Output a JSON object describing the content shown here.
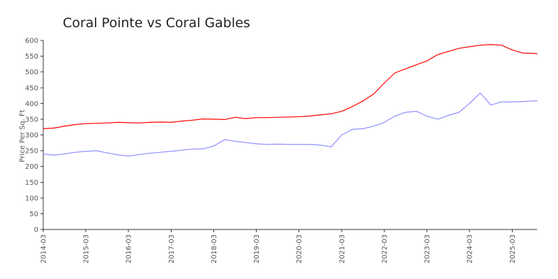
{
  "chart_data": {
    "type": "line",
    "title": "Coral Pointe vs Coral Gables",
    "xlabel": "",
    "ylabel": "Price Per Sq. Ft",
    "ylim": [
      0,
      600
    ],
    "yticks": [
      0,
      50,
      100,
      150,
      200,
      250,
      300,
      350,
      400,
      450,
      500,
      550,
      600
    ],
    "xlim": [
      "2014-03",
      "2025-10"
    ],
    "xticks": [
      "2014-03",
      "2015-03",
      "2016-03",
      "2017-03",
      "2018-03",
      "2019-03",
      "2020-03",
      "2021-03",
      "2022-03",
      "2023-03",
      "2024-03",
      "2025-03"
    ],
    "grid": false,
    "legend": "none",
    "series": [
      {
        "color": "#ff0000",
        "x": [
          "2014-03",
          "2014-06",
          "2014-09",
          "2014-12",
          "2015-03",
          "2015-06",
          "2015-09",
          "2015-12",
          "2016-03",
          "2016-06",
          "2016-09",
          "2016-12",
          "2017-03",
          "2017-06",
          "2017-09",
          "2017-12",
          "2018-03",
          "2018-06",
          "2018-09",
          "2018-12",
          "2019-03",
          "2019-06",
          "2019-09",
          "2019-12",
          "2020-03",
          "2020-06",
          "2020-09",
          "2020-12",
          "2021-03",
          "2021-06",
          "2021-09",
          "2021-12",
          "2022-03",
          "2022-06",
          "2022-09",
          "2022-12",
          "2023-03",
          "2023-06",
          "2023-09",
          "2023-12",
          "2024-03",
          "2024-06",
          "2024-09",
          "2024-12",
          "2025-03",
          "2025-06",
          "2025-09",
          "2025-10"
        ],
        "values": [
          320,
          322,
          328,
          333,
          336,
          337,
          338,
          340,
          339,
          338,
          340,
          341,
          340,
          344,
          347,
          351,
          350,
          349,
          356,
          352,
          355,
          355,
          356,
          357,
          358,
          360,
          364,
          367,
          375,
          390,
          408,
          430,
          465,
          497,
          510,
          523,
          535,
          555,
          565,
          575,
          580,
          585,
          587,
          585,
          570,
          560,
          559,
          558
        ]
      },
      {
        "color": "#8f8fff",
        "x": [
          "2014-03",
          "2014-06",
          "2014-09",
          "2014-12",
          "2015-03",
          "2015-06",
          "2015-09",
          "2015-12",
          "2016-03",
          "2016-06",
          "2016-09",
          "2016-12",
          "2017-03",
          "2017-06",
          "2017-09",
          "2017-12",
          "2018-03",
          "2018-06",
          "2018-09",
          "2018-12",
          "2019-03",
          "2019-06",
          "2019-09",
          "2019-12",
          "2020-03",
          "2020-06",
          "2020-09",
          "2020-12",
          "2021-03",
          "2021-06",
          "2021-09",
          "2021-12",
          "2022-03",
          "2022-06",
          "2022-09",
          "2022-12",
          "2023-03",
          "2023-06",
          "2023-09",
          "2023-12",
          "2024-03",
          "2024-06",
          "2024-09",
          "2024-12",
          "2025-03",
          "2025-06",
          "2025-09",
          "2025-10"
        ],
        "values": [
          240,
          236,
          240,
          245,
          248,
          250,
          243,
          237,
          233,
          238,
          242,
          245,
          248,
          252,
          255,
          256,
          265,
          285,
          280,
          276,
          272,
          270,
          271,
          270,
          270,
          270,
          268,
          262,
          300,
          318,
          320,
          328,
          340,
          360,
          372,
          375,
          360,
          350,
          362,
          372,
          400,
          433,
          395,
          405,
          405,
          406,
          408,
          408
        ]
      }
    ]
  }
}
